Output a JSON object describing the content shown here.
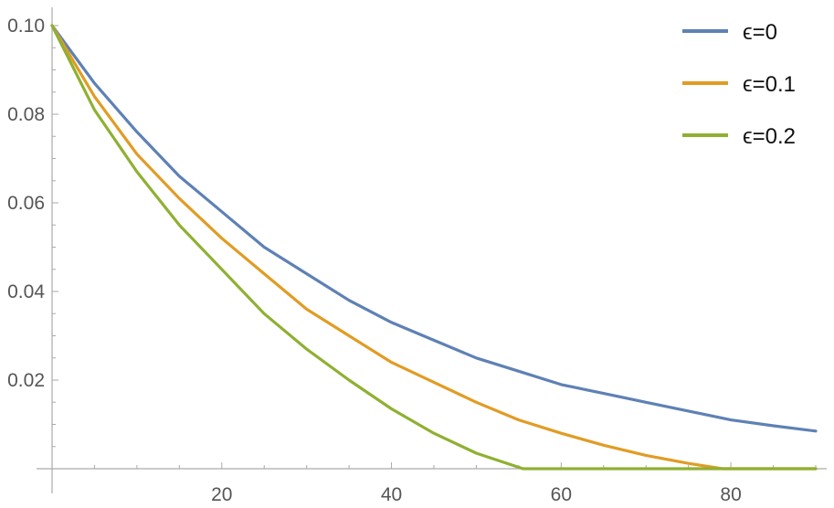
{
  "chart_data": {
    "type": "line",
    "title": "",
    "xlabel": "",
    "ylabel": "",
    "xlim": [
      0,
      90
    ],
    "ylim": [
      0,
      0.1
    ],
    "x_ticks": [
      20,
      40,
      60,
      80
    ],
    "y_ticks": [
      0.02,
      0.04,
      0.06,
      0.08,
      0.1
    ],
    "x_tick_labels": [
      "20",
      "40",
      "60",
      "80"
    ],
    "y_tick_labels": [
      "0.02",
      "0.04",
      "0.06",
      "0.08",
      "0.10"
    ],
    "grid": false,
    "legend_position": "top-right",
    "series": [
      {
        "name": "ϵ=0",
        "color": "#5e81b5",
        "x": [
          0,
          5,
          10,
          15,
          20,
          25,
          30,
          35,
          40,
          45,
          50,
          55,
          60,
          65,
          70,
          75,
          80,
          85,
          90
        ],
        "y": [
          0.1,
          0.087,
          0.076,
          0.066,
          0.058,
          0.05,
          0.044,
          0.038,
          0.033,
          0.029,
          0.025,
          0.022,
          0.019,
          0.017,
          0.015,
          0.013,
          0.011,
          0.0097,
          0.0085
        ]
      },
      {
        "name": "ϵ=0.1",
        "color": "#e19c24",
        "x": [
          0,
          5,
          10,
          15,
          20,
          25,
          30,
          35,
          40,
          45,
          50,
          55,
          60,
          65,
          70,
          75,
          79,
          80,
          85,
          90
        ],
        "y": [
          0.1,
          0.084,
          0.071,
          0.061,
          0.052,
          0.044,
          0.036,
          0.03,
          0.024,
          0.0195,
          0.015,
          0.011,
          0.008,
          0.0053,
          0.003,
          0.0012,
          0.0,
          0.0,
          0.0,
          0.0
        ]
      },
      {
        "name": "ϵ=0.2",
        "color": "#8fb032",
        "x": [
          0,
          5,
          10,
          15,
          20,
          25,
          30,
          35,
          40,
          45,
          50,
          55.5,
          60,
          65,
          70,
          75,
          80,
          85,
          90
        ],
        "y": [
          0.1,
          0.081,
          0.067,
          0.055,
          0.045,
          0.035,
          0.027,
          0.02,
          0.0135,
          0.008,
          0.0035,
          0.0,
          0.0,
          0.0,
          0.0,
          0.0,
          0.0,
          0.0,
          0.0
        ]
      }
    ]
  }
}
